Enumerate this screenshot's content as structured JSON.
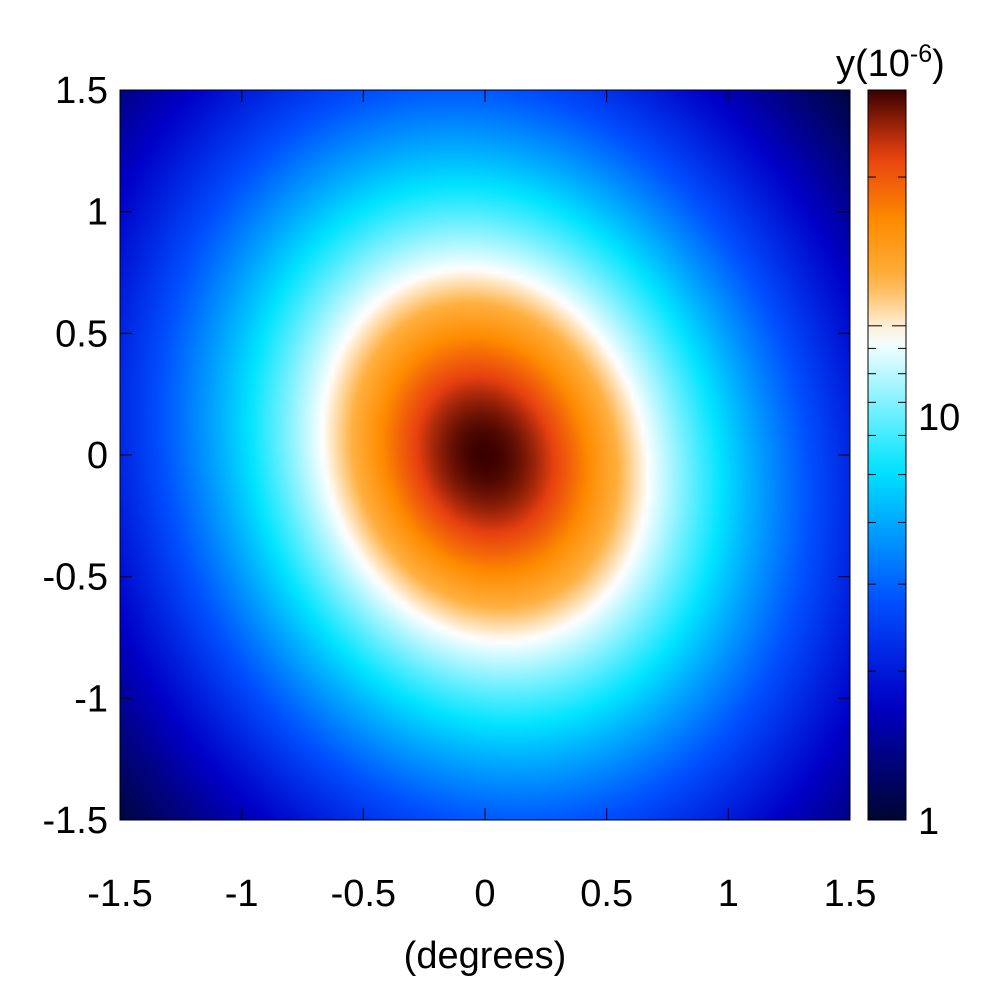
{
  "chart_data": {
    "type": "heatmap",
    "title": "",
    "xlabel": "(degrees)",
    "ylabel": "",
    "xlim": [
      -1.5,
      1.5
    ],
    "ylim": [
      -1.5,
      1.5
    ],
    "x_ticks": [
      "-1.5",
      "-1",
      "-0.5",
      "0",
      "0.5",
      "1",
      "1.5"
    ],
    "y_ticks": [
      "1.5",
      "1",
      "0.5",
      "0",
      "-0.5",
      "-1",
      "-1.5"
    ],
    "grid": false,
    "colorbar": {
      "label_base": "y(10",
      "label_exponent": "-6",
      "label_close": ")",
      "scale": "log",
      "range": [
        1,
        30
      ],
      "tick_labels": [
        "10",
        "1"
      ]
    },
    "colormap": [
      "#000530",
      "#0000c8",
      "#0050ff",
      "#00e4ff",
      "#ffffff",
      "#ffb040",
      "#ff8c00",
      "#e84010",
      "#3a0000"
    ],
    "field": {
      "peak_value": 30,
      "peak_position": [
        0,
        0
      ],
      "sigma_x": 0.52,
      "sigma_y": 0.62,
      "orientation": "slightly tilted ellipse, elongated toward upper-right/lower-left"
    }
  }
}
